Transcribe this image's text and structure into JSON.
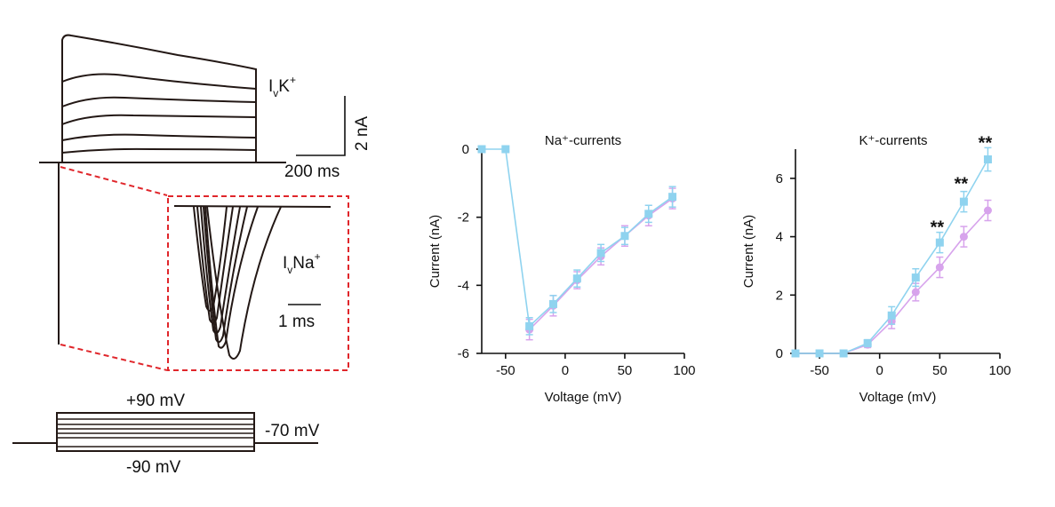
{
  "traces": {
    "k_label": {
      "main": "I",
      "sub": "v",
      "ion": "K",
      "sup": "+"
    },
    "na_label": {
      "main": "I",
      "sub": "v",
      "ion": "Na",
      "sup": "+"
    },
    "scale_current": "2 nA",
    "scale_time": "200 ms",
    "scale_inset_time": "1 ms"
  },
  "protocol": {
    "top_label": "+90 mV",
    "hold_label": "-70 mV",
    "bottom_label": "-90 mV"
  },
  "colors": {
    "trace": "#231815",
    "inset_border": "#e0262b",
    "series_a": "#8fd3ef",
    "series_b": "#d7a3ec"
  },
  "chart_data": [
    {
      "type": "line",
      "title": "Na⁺-currents",
      "xlabel": "Voltage (mV)",
      "ylabel": "Current (nA)",
      "xlim": [
        -70,
        100
      ],
      "ylim": [
        -6,
        0
      ],
      "xticks": [
        "-50",
        "0",
        "50",
        "100"
      ],
      "yticks": [
        "0",
        "-2",
        "-4",
        "-6"
      ],
      "series": [
        {
          "color": "#d7a3ec",
          "marker": "circle",
          "x": [
            -30,
            -10,
            10,
            30,
            50,
            70,
            90
          ],
          "values": [
            -5.3,
            -4.6,
            -3.85,
            -3.15,
            -2.55,
            -1.95,
            -1.45
          ],
          "err": [
            0.3,
            0.3,
            0.25,
            0.25,
            0.3,
            0.3,
            0.3
          ]
        },
        {
          "color": "#8fd3ef",
          "marker": "square",
          "x": [
            -70,
            -50,
            -30,
            -10,
            10,
            30,
            50,
            70,
            90
          ],
          "values": [
            0,
            0,
            -5.2,
            -4.55,
            -3.8,
            -3.05,
            -2.55,
            -1.9,
            -1.4
          ],
          "err": [
            0,
            0,
            0.25,
            0.25,
            0.25,
            0.25,
            0.25,
            0.25,
            0.3
          ]
        }
      ],
      "annotations": []
    },
    {
      "type": "line",
      "title": "K⁺-currents",
      "xlabel": "Voltage (mV)",
      "ylabel": "Current (nA)",
      "xlim": [
        -70,
        100
      ],
      "ylim": [
        0,
        7
      ],
      "xticks": [
        "-50",
        "0",
        "50",
        "100"
      ],
      "yticks": [
        "0",
        "2",
        "4",
        "6"
      ],
      "series": [
        {
          "color": "#d7a3ec",
          "marker": "circle",
          "x": [
            -70,
            -50,
            -30,
            -10,
            10,
            30,
            50,
            70,
            90
          ],
          "values": [
            0,
            0,
            0,
            0.3,
            1.1,
            2.1,
            2.95,
            4.0,
            4.9
          ],
          "err": [
            0,
            0,
            0,
            0.1,
            0.25,
            0.3,
            0.35,
            0.35,
            0.35
          ]
        },
        {
          "color": "#8fd3ef",
          "marker": "square",
          "x": [
            -70,
            -50,
            -30,
            -10,
            10,
            30,
            50,
            70,
            90
          ],
          "values": [
            0,
            0,
            0,
            0.35,
            1.3,
            2.6,
            3.8,
            5.2,
            6.65
          ],
          "err": [
            0,
            0,
            0,
            0.12,
            0.3,
            0.3,
            0.35,
            0.35,
            0.4
          ]
        }
      ],
      "annotations": [
        {
          "x": 50,
          "y": 4.3,
          "text": "**"
        },
        {
          "x": 70,
          "y": 5.8,
          "text": "**"
        },
        {
          "x": 90,
          "y": 7.2,
          "text": "**"
        }
      ]
    }
  ]
}
